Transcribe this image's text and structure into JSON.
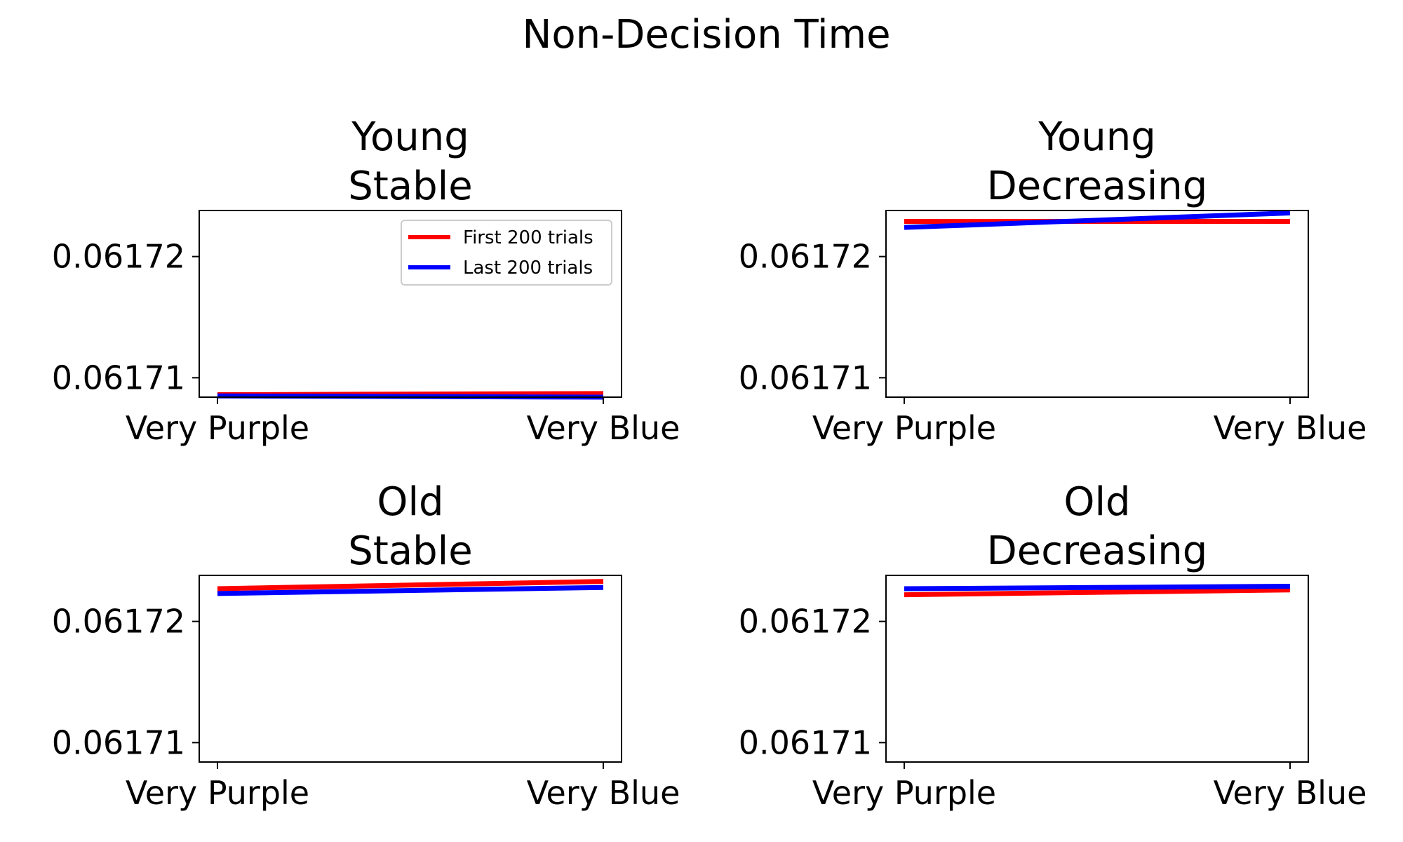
{
  "chart_data": {
    "type": "line",
    "suptitle": "Non-Decision Time",
    "x_categories": [
      "Very Purple",
      "Very Blue"
    ],
    "y_ticks": [
      0.06171,
      0.06172
    ],
    "y_tick_labels": [
      "0.06171",
      "0.06172"
    ],
    "legend": {
      "placement": "upper-right",
      "shown_in_panel": 0,
      "entries": [
        "First 200 trials",
        "Last 200 trials"
      ]
    },
    "series_colors": [
      "#ff0000",
      "#0000ff"
    ],
    "panels": [
      {
        "title_lines": [
          "Young",
          "Stable"
        ],
        "ylim": [
          0.0617084,
          0.0617238
        ],
        "series": [
          {
            "name": "First 200 trials",
            "color": "#ff0000",
            "values": [
              0.0617086,
              0.0617087
            ]
          },
          {
            "name": "Last 200 trials",
            "color": "#0000ff",
            "values": [
              0.0617085,
              0.0617084
            ]
          }
        ]
      },
      {
        "title_lines": [
          "Young",
          "Decreasing"
        ],
        "ylim": [
          0.0617084,
          0.0617238
        ],
        "series": [
          {
            "name": "First 200 trials",
            "color": "#ff0000",
            "values": [
              0.0617229,
              0.0617229
            ]
          },
          {
            "name": "Last 200 trials",
            "color": "#0000ff",
            "values": [
              0.0617224,
              0.0617236
            ]
          }
        ]
      },
      {
        "title_lines": [
          "Old",
          "Stable"
        ],
        "ylim": [
          0.0617084,
          0.0617238
        ],
        "series": [
          {
            "name": "First 200 trials",
            "color": "#ff0000",
            "values": [
              0.0617227,
              0.0617233
            ]
          },
          {
            "name": "Last 200 trials",
            "color": "#0000ff",
            "values": [
              0.0617223,
              0.0617228
            ]
          }
        ]
      },
      {
        "title_lines": [
          "Old",
          "Decreasing"
        ],
        "ylim": [
          0.0617084,
          0.0617238
        ],
        "series": [
          {
            "name": "First 200 trials",
            "color": "#ff0000",
            "values": [
              0.0617222,
              0.0617226
            ]
          },
          {
            "name": "Last 200 trials",
            "color": "#0000ff",
            "values": [
              0.0617227,
              0.0617229
            ]
          }
        ]
      }
    ]
  }
}
